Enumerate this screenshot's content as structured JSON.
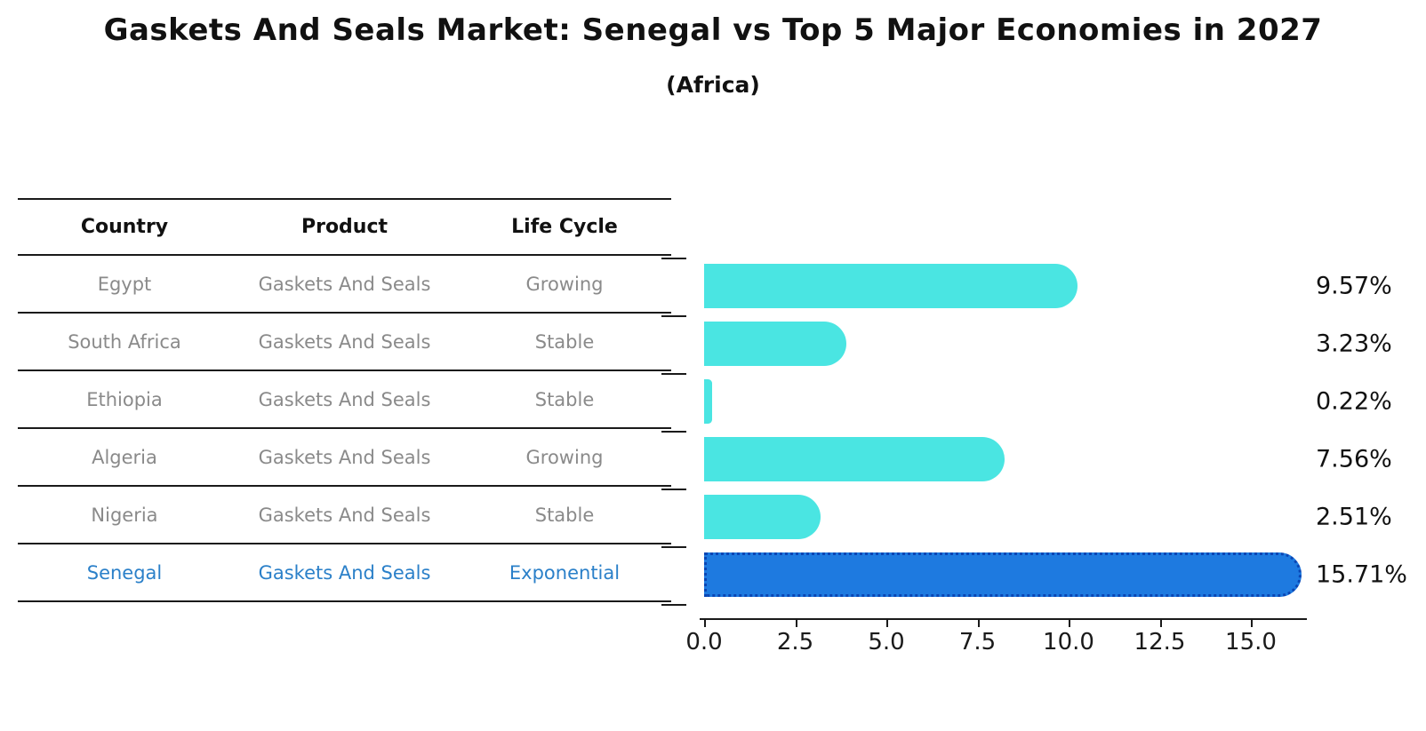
{
  "title": "Gaskets And Seals Market: Senegal vs Top 5 Major Economies in 2027",
  "subtitle": "(Africa)",
  "table": {
    "headers": {
      "country": "Country",
      "product": "Product",
      "life_cycle": "Life Cycle"
    },
    "rows": [
      {
        "country": "Egypt",
        "product": "Gaskets And Seals",
        "life_cycle": "Growing",
        "highlight": false
      },
      {
        "country": "South Africa",
        "product": "Gaskets And Seals",
        "life_cycle": "Stable",
        "highlight": false
      },
      {
        "country": "Ethiopia",
        "product": "Gaskets And Seals",
        "life_cycle": "Stable",
        "highlight": false
      },
      {
        "country": "Algeria",
        "product": "Gaskets And Seals",
        "life_cycle": "Growing",
        "highlight": false
      },
      {
        "country": "Nigeria",
        "product": "Gaskets And Seals",
        "life_cycle": "Stable",
        "highlight": false
      },
      {
        "country": "Senegal",
        "product": "Gaskets And Seals",
        "life_cycle": "Exponential",
        "highlight": true
      }
    ]
  },
  "chart_data": {
    "type": "bar",
    "orientation": "horizontal",
    "categories": [
      "Egypt",
      "South Africa",
      "Ethiopia",
      "Algeria",
      "Nigeria",
      "Senegal"
    ],
    "values": [
      9.57,
      3.23,
      0.22,
      7.56,
      2.51,
      15.71
    ],
    "value_labels": [
      "9.57%",
      "3.23%",
      "0.22%",
      "7.56%",
      "2.51%",
      "15.71%"
    ],
    "title": "Gaskets And Seals Market: Senegal vs Top 5 Major Economies in 2027",
    "xlabel": "",
    "ylabel": "",
    "xlim": [
      0,
      16.5
    ],
    "x_ticks": [
      0.0,
      2.5,
      5.0,
      7.5,
      10.0,
      12.5,
      15.0
    ],
    "x_tick_labels": [
      "0.0",
      "2.5",
      "5.0",
      "7.5",
      "10.0",
      "12.5",
      "15.0"
    ],
    "grid": false,
    "legend": false,
    "highlight_index": 5,
    "bar_color": "#4ae5e2",
    "highlight_bar_color": "#1e7ae0",
    "highlight_border_color": "#0a46b4",
    "highlight_text_color": "#2b80c9",
    "muted_text_color": "#8a8a8a"
  }
}
